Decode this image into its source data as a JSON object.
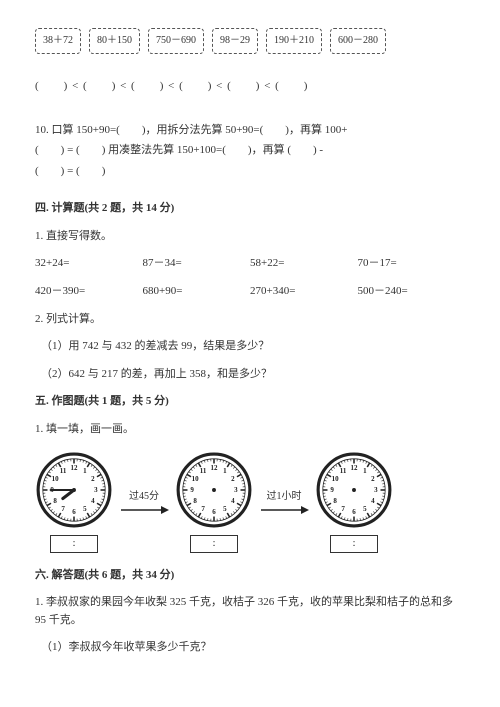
{
  "expressions": [
    "38＋72",
    "80＋150",
    "750－690",
    "98－29",
    "190＋210",
    "600－280"
  ],
  "blank_row": "(　　) < (　　) < (　　) < (　　) < (　　) < (　　)",
  "q10": {
    "line1": "10. 口算 150+90=(　　)，用拆分法先算 50+90=(　　)，再算 100+",
    "line2": "(　　) = (　　) 用凑整法先算 150+100=(　　)，再算 (　　) -",
    "line3": "(　　) = (　　)"
  },
  "sec4": {
    "title": "四. 计算题(共 2 题，共 14 分)",
    "q1": "1. 直接写得数。",
    "row1": [
      "32+24=",
      "87－34=",
      "58+22=",
      "70－17="
    ],
    "row2": [
      "420－390=",
      "680+90=",
      "270+340=",
      "500－240="
    ],
    "q2": "2. 列式计算。",
    "q2a": "（1）用 742 与 432 的差减去 99，结果是多少？",
    "q2b": "（2）642 与 217 的差，再加上 358，和是多少？"
  },
  "sec5": {
    "title": "五. 作图题(共 1 题，共 5 分)",
    "q1": "1. 填一填，画一画。",
    "label1": "过45分",
    "label2": "过1小时",
    "colon": ":",
    "clock": {
      "face_stroke": "#222222",
      "tick_stroke": "#222222",
      "hand_stroke": "#222222",
      "num_fontsize": 7,
      "hour_angle_deg": 232.5,
      "minute_angle_deg": 270
    }
  },
  "sec6": {
    "title": "六. 解答题(共 6 题，共 34 分)",
    "q1": "1. 李叔叔家的果园今年收梨 325 千克，收桔子 326 千克，收的苹果比梨和桔子的总和多 95 千克。",
    "q1a": "（1）李叔叔今年收苹果多少千克？"
  }
}
